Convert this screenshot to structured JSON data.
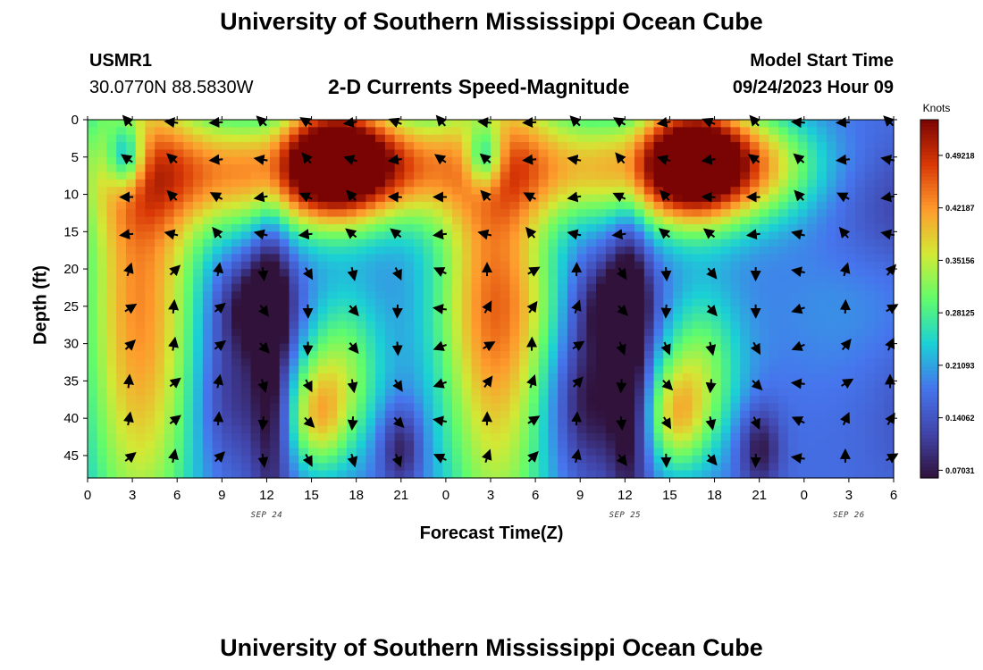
{
  "header": {
    "title": "University of Southern Mississippi Ocean Cube",
    "station": "USMR1",
    "coords": "30.0770N  88.5830W",
    "chart_title": "2-D Currents Speed-Magnitude",
    "model_start_label": "Model Start Time",
    "model_start_value": "09/24/2023 Hour 09"
  },
  "footer": {
    "title": "University of Southern Mississippi Ocean Cube"
  },
  "colors": {
    "arrow": "#000000",
    "colormap": [
      "#30123b",
      "#4145ab",
      "#4675ed",
      "#1bd0d5",
      "#62fc6b",
      "#d2e935",
      "#fe9b2d",
      "#d93806",
      "#7a0403"
    ]
  },
  "chart_data": {
    "type": "heatmap",
    "title": "2-D Currents Speed-Magnitude",
    "xlabel": "Forecast Time(Z)",
    "ylabel": "Depth (ft)",
    "x_range_hours": [
      0,
      54
    ],
    "y_range_ft": [
      0,
      48
    ],
    "x_tick_labels": [
      "0",
      "3",
      "6",
      "9",
      "12",
      "15",
      "18",
      "21",
      "0",
      "3",
      "6",
      "9",
      "12",
      "15",
      "18",
      "21",
      "0",
      "3",
      "6"
    ],
    "y_tick_labels": [
      "0",
      "5",
      "10",
      "15",
      "20",
      "25",
      "30",
      "35",
      "40",
      "45"
    ],
    "date_labels": [
      {
        "text": "SEP 24",
        "hour": 12
      },
      {
        "text": "SEP 25",
        "hour": 36
      },
      {
        "text": "SEP 26",
        "hour": 51
      }
    ],
    "colorbar": {
      "title": "Knots",
      "tick_labels": [
        "0.49218",
        "0.42187",
        "0.35156",
        "0.28125",
        "0.21093",
        "0.14062",
        "0.07031"
      ],
      "tick_values": [
        0.49218,
        0.42187,
        0.35156,
        0.28125,
        0.21093,
        0.14062,
        0.07031
      ],
      "range": [
        0.06,
        0.54
      ]
    },
    "speed_blobs": [
      {
        "x": 3.5,
        "y": 24,
        "sx": 2.8,
        "sy": 26,
        "v": 0.26
      },
      {
        "x": 2.6,
        "y": 5,
        "sx": 0.9,
        "sy": 3.2,
        "v": -0.2
      },
      {
        "x": 11,
        "y": 7,
        "sx": 6.5,
        "sy": 5.5,
        "v": 0.24
      },
      {
        "x": 20,
        "y": 6,
        "sx": 3.5,
        "sy": 5,
        "v": 0.18
      },
      {
        "x": 11.3,
        "y": 25,
        "sx": 1.8,
        "sy": 4.5,
        "v": -0.14
      },
      {
        "x": 9.5,
        "y": 37,
        "sx": 1.6,
        "sy": 7,
        "v": -0.08
      },
      {
        "x": 15.3,
        "y": 40,
        "sx": 1.4,
        "sy": 5,
        "v": 0.15
      },
      {
        "x": 12.3,
        "y": 32,
        "sx": 0.9,
        "sy": 16,
        "v": -0.13
      },
      {
        "x": 16.5,
        "y": 5,
        "sx": 2.4,
        "sy": 6,
        "v": 0.27
      },
      {
        "x": 17,
        "y": 34,
        "sx": 2,
        "sy": 8,
        "v": 0.15
      },
      {
        "x": 21,
        "y": 44,
        "sx": 1,
        "sy": 4,
        "v": -0.11
      },
      {
        "x": 27,
        "y": 25,
        "sx": 5,
        "sy": 8,
        "v": 0.03
      },
      {
        "x": 31.5,
        "y": 12,
        "sx": 4,
        "sy": 6,
        "v": -0.06
      },
      {
        "x": 33,
        "y": 38,
        "sx": 3,
        "sy": 8,
        "v": -0.05
      }
    ],
    "day2_offset_hours": 24,
    "arrow_columns_hours": [
      3,
      6,
      9,
      12,
      15,
      18,
      21,
      24,
      27,
      30,
      33,
      36,
      39,
      42,
      45,
      48,
      51,
      54
    ],
    "arrow_rows_ft": [
      0,
      5,
      10,
      15,
      20,
      25,
      30,
      35,
      40,
      45
    ]
  }
}
